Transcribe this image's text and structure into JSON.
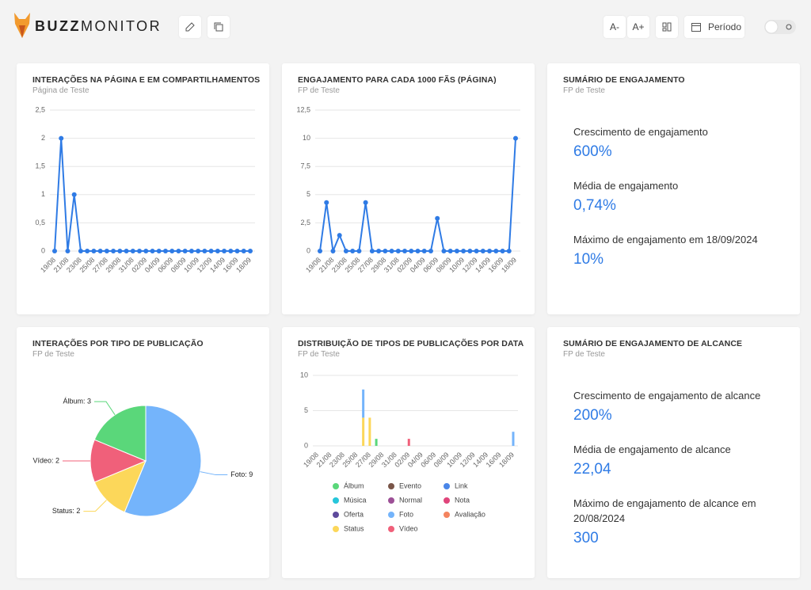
{
  "header": {
    "logo_bold": "BUZZ",
    "logo_light": "MONITOR",
    "buttons": [
      "A-",
      "A+"
    ],
    "period": "Período"
  },
  "cards": [
    {
      "title": "INTERAÇÕES NA PÁGINA E EM COMPARTILHAMENTOS",
      "subtitle": "Página de Teste",
      "chart": {
        "type": "line",
        "color": "#2f7be5",
        "grid": true,
        "categories": [
          "19/08",
          null,
          "21/08",
          null,
          "23/08",
          null,
          "25/08",
          null,
          "27/08",
          null,
          "29/08",
          null,
          "31/08",
          null,
          "02/09",
          null,
          "04/09",
          null,
          "06/09",
          null,
          "08/09",
          null,
          "10/09",
          null,
          "12/09",
          null,
          "14/09",
          null,
          "16/09",
          null,
          "18/09"
        ],
        "values": [
          0,
          2,
          0,
          1,
          0,
          0,
          0,
          0,
          0,
          0,
          0,
          0,
          0,
          0,
          0,
          0,
          0,
          0,
          0,
          0,
          0,
          0,
          0,
          0,
          0,
          0,
          0,
          0,
          0,
          0,
          0
        ],
        "ylim": [
          0,
          2.5
        ],
        "yticks": [
          0,
          {
            "value": 0.5,
            "label": "0,5"
          },
          1,
          {
            "value": 1.5,
            "label": "1,5"
          },
          2,
          {
            "value": 2.5,
            "label": "2,5"
          }
        ]
      }
    },
    {
      "title": "ENGAJAMENTO PARA CADA 1000 FÃS (PÁGINA)",
      "subtitle": "FP de Teste",
      "chart": {
        "type": "line",
        "color": "#2f7be5",
        "grid": true,
        "categories": [
          "19/08",
          null,
          "21/08",
          null,
          "23/08",
          null,
          "25/08",
          null,
          "27/08",
          null,
          "29/08",
          null,
          "31/08",
          null,
          "02/09",
          null,
          "04/09",
          null,
          "06/09",
          null,
          "08/09",
          null,
          "10/09",
          null,
          "12/09",
          null,
          "14/09",
          null,
          "16/09",
          null,
          "18/09"
        ],
        "values": [
          0,
          4.3,
          0,
          1.4,
          0,
          0,
          0,
          4.3,
          0,
          0,
          0,
          0,
          0,
          0,
          0,
          0,
          0,
          0,
          2.9,
          0,
          0,
          0,
          0,
          0,
          0,
          0,
          0,
          0,
          0,
          0,
          10
        ],
        "ylim": [
          0,
          12.5
        ],
        "yticks": [
          0,
          {
            "value": 2.5,
            "label": "2,5"
          },
          5,
          {
            "value": 7.5,
            "label": "7,5"
          },
          10,
          {
            "value": 12.5,
            "label": "12,5"
          }
        ]
      }
    },
    {
      "title": "SUMÁRIO DE ENGAJAMENTO",
      "subtitle": "FP de Teste",
      "items": [
        {
          "label": "Crescimento de engajamento",
          "value": "600%"
        },
        {
          "label": "Média de engajamento",
          "value": "0,74%"
        },
        {
          "label": "Máximo de engajamento em 18/09/2024",
          "value": "10%"
        }
      ]
    },
    {
      "title": "INTERAÇÕES POR TIPO DE PUBLICAÇÃO",
      "subtitle": "FP de Teste",
      "chart": {
        "type": "pie",
        "values": [
          9,
          2,
          2,
          3
        ],
        "value_labels": [
          "Foto: 9",
          "Status: 2",
          "Vídeo: 2",
          "Álbum: 3"
        ],
        "colors": [
          "#74b4fb",
          "#fcd75a",
          "#f0607a",
          "#5ad77a"
        ]
      }
    },
    {
      "title": "DISTRIBUIÇÃO DE TIPOS DE PUBLICAÇÕES POR DATA",
      "subtitle": "FP de Teste",
      "chart": {
        "type": "stacked_bar",
        "grid": true,
        "categories": [
          "19/08",
          null,
          "21/08",
          null,
          "23/08",
          null,
          "25/08",
          null,
          "27/08",
          null,
          "29/08",
          null,
          "31/08",
          null,
          "02/09",
          null,
          "04/09",
          null,
          "06/09",
          null,
          "08/09",
          null,
          "10/09",
          null,
          "12/09",
          null,
          "14/09",
          null,
          "16/09",
          null,
          "18/09"
        ],
        "ylim": [
          0,
          10
        ],
        "yticks": [
          0,
          5,
          10
        ],
        "series": [
          {
            "name": "Álbum",
            "color": "#5ad77a",
            "values": [
              0,
              0,
              0,
              0,
              0,
              0,
              0,
              0,
              0,
              1,
              0,
              0,
              0,
              0,
              0,
              0,
              0,
              0,
              0,
              0,
              0,
              0,
              0,
              0,
              0,
              0,
              0,
              0,
              0,
              0,
              0
            ]
          },
          {
            "name": "Evento",
            "color": "#795548",
            "values": [
              0,
              0,
              0,
              0,
              0,
              0,
              0,
              0,
              0,
              0,
              0,
              0,
              0,
              0,
              0,
              0,
              0,
              0,
              0,
              0,
              0,
              0,
              0,
              0,
              0,
              0,
              0,
              0,
              0,
              0,
              0
            ]
          },
          {
            "name": "Link",
            "color": "#4a86e8",
            "values": [
              0,
              0,
              0,
              0,
              0,
              0,
              0,
              0,
              0,
              0,
              0,
              0,
              0,
              0,
              0,
              0,
              0,
              0,
              0,
              0,
              0,
              0,
              0,
              0,
              0,
              0,
              0,
              0,
              0,
              0,
              0
            ]
          },
          {
            "name": "Música",
            "color": "#26c6da",
            "values": [
              0,
              0,
              0,
              0,
              0,
              0,
              0,
              0,
              0,
              0,
              0,
              0,
              0,
              0,
              0,
              0,
              0,
              0,
              0,
              0,
              0,
              0,
              0,
              0,
              0,
              0,
              0,
              0,
              0,
              0,
              0
            ]
          },
          {
            "name": "Normal",
            "color": "#9c4f96",
            "values": [
              0,
              0,
              0,
              0,
              0,
              0,
              0,
              0,
              0,
              0,
              0,
              0,
              0,
              0,
              0,
              0,
              0,
              0,
              0,
              0,
              0,
              0,
              0,
              0,
              0,
              0,
              0,
              0,
              0,
              0,
              0
            ]
          },
          {
            "name": "Nota",
            "color": "#e0457b",
            "values": [
              0,
              0,
              0,
              0,
              0,
              0,
              0,
              0,
              0,
              0,
              0,
              0,
              0,
              0,
              0,
              0,
              0,
              0,
              0,
              0,
              0,
              0,
              0,
              0,
              0,
              0,
              0,
              0,
              0,
              0,
              0
            ]
          },
          {
            "name": "Oferta",
            "color": "#5e4a9c",
            "values": [
              0,
              0,
              0,
              0,
              0,
              0,
              0,
              0,
              0,
              0,
              0,
              0,
              0,
              0,
              0,
              0,
              0,
              0,
              0,
              0,
              0,
              0,
              0,
              0,
              0,
              0,
              0,
              0,
              0,
              0,
              0
            ]
          },
          {
            "name": "Foto",
            "color": "#74b4fb",
            "values": [
              0,
              0,
              0,
              0,
              0,
              0,
              0,
              4,
              0,
              0,
              0,
              0,
              0,
              0,
              0,
              0,
              0,
              0,
              0,
              0,
              0,
              0,
              0,
              0,
              0,
              0,
              0,
              0,
              0,
              0,
              2
            ]
          },
          {
            "name": "Avaliação",
            "color": "#f4845f",
            "values": [
              0,
              0,
              0,
              0,
              0,
              0,
              0,
              0,
              0,
              0,
              0,
              0,
              0,
              0,
              0,
              0,
              0,
              0,
              0,
              0,
              0,
              0,
              0,
              0,
              0,
              0,
              0,
              0,
              0,
              0,
              0
            ]
          },
          {
            "name": "Status",
            "color": "#fcd75a",
            "values": [
              0,
              0,
              0,
              0,
              0,
              0,
              0,
              4,
              4,
              0,
              0,
              0,
              0,
              0,
              0,
              0,
              0,
              0,
              0,
              0,
              0,
              0,
              0,
              0,
              0,
              0,
              0,
              0,
              0,
              0,
              0
            ]
          },
          {
            "name": "Vídeo",
            "color": "#f0607a",
            "values": [
              0,
              0,
              0,
              0,
              0,
              0,
              0,
              0,
              0,
              0,
              0,
              0,
              0,
              0,
              1,
              0,
              0,
              0,
              0,
              0,
              0,
              0,
              0,
              0,
              0,
              0,
              0,
              0,
              0,
              0,
              0
            ]
          }
        ]
      }
    },
    {
      "title": "SUMÁRIO DE ENGAJAMENTO DE ALCANCE",
      "subtitle": "FP de Teste",
      "items": [
        {
          "label": "Crescimento de engajamento de alcance",
          "value": "200%"
        },
        {
          "label": "Média de engajamento de alcance",
          "value": "22,04"
        },
        {
          "label": "Máximo de engajamento de alcance em 20/08/2024",
          "value": "300"
        }
      ]
    }
  ]
}
